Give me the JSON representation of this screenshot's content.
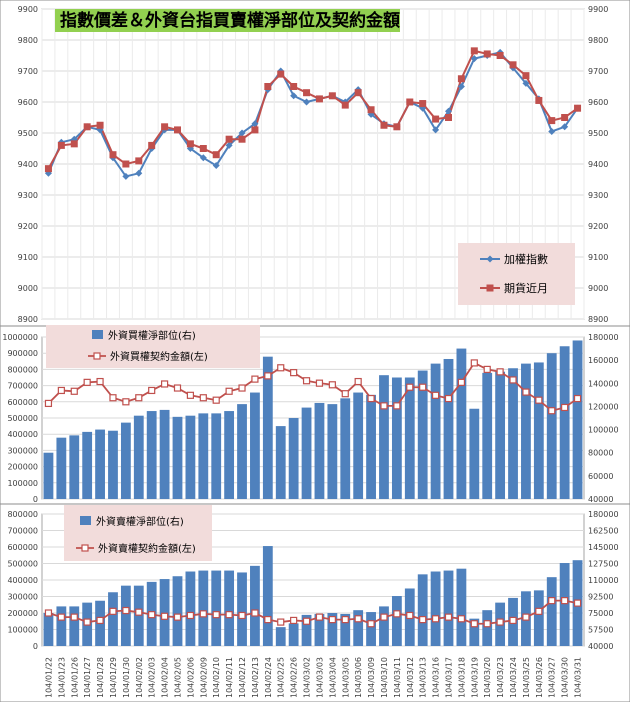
{
  "chart_data": [
    {
      "type": "line",
      "title": "指數價差＆外資台指買賣權淨部位及契約金額",
      "x": [
        "104/01/22",
        "104/01/23",
        "104/01/26",
        "104/01/27",
        "104/01/28",
        "104/01/29",
        "104/01/30",
        "104/02/02",
        "104/02/03",
        "104/02/04",
        "104/02/05",
        "104/02/06",
        "104/02/09",
        "104/02/10",
        "104/02/11",
        "104/02/12",
        "104/02/13",
        "104/02/24",
        "104/02/25",
        "104/02/26",
        "104/03/02",
        "104/03/03",
        "104/03/04",
        "104/03/05",
        "104/03/06",
        "104/03/09",
        "104/03/10",
        "104/03/11",
        "104/03/12",
        "104/03/13",
        "104/03/16",
        "104/03/17",
        "104/03/18",
        "104/03/19",
        "104/03/20",
        "104/03/23",
        "104/03/24",
        "104/03/25",
        "104/03/26",
        "104/03/27",
        "104/03/30",
        "104/03/31"
      ],
      "series": [
        {
          "name": "加權指數",
          "color": "#4f81bd",
          "marker": "diamond",
          "values": [
            9370,
            9470,
            9480,
            9520,
            9510,
            9420,
            9360,
            9370,
            9450,
            9510,
            9510,
            9450,
            9420,
            9395,
            9460,
            9500,
            9530,
            9640,
            9700,
            9620,
            9600,
            9610,
            9620,
            9600,
            9640,
            9560,
            9530,
            9520,
            9600,
            9580,
            9510,
            9570,
            9650,
            9740,
            9750,
            9760,
            9710,
            9660,
            9610,
            9505,
            9520,
            9580
          ]
        },
        {
          "name": "期貨近月",
          "color": "#c0504d",
          "marker": "square",
          "values": [
            9385,
            9460,
            9465,
            9520,
            9525,
            9430,
            9400,
            9410,
            9460,
            9520,
            9510,
            9465,
            9450,
            9430,
            9480,
            9480,
            9510,
            9650,
            9690,
            9650,
            9630,
            9610,
            9620,
            9590,
            9630,
            9575,
            9525,
            9520,
            9600,
            9595,
            9545,
            9550,
            9675,
            9765,
            9755,
            9750,
            9720,
            9685,
            9605,
            9540,
            9550,
            9580
          ]
        }
      ],
      "y_ticks": [
        "8900",
        "9000",
        "9100",
        "9200",
        "9300",
        "9400",
        "9500",
        "9600",
        "9700",
        "9800",
        "9900"
      ],
      "ylim": [
        8900,
        9900
      ],
      "legend_position": "right"
    },
    {
      "type": "bar",
      "x": [
        "104/01/22",
        "104/01/23",
        "104/01/26",
        "104/01/27",
        "104/01/28",
        "104/01/29",
        "104/01/30",
        "104/02/02",
        "104/02/03",
        "104/02/04",
        "104/02/05",
        "104/02/06",
        "104/02/09",
        "104/02/10",
        "104/02/11",
        "104/02/12",
        "104/02/13",
        "104/02/24",
        "104/02/25",
        "104/02/26",
        "104/03/02",
        "104/03/03",
        "104/03/04",
        "104/03/05",
        "104/03/06",
        "104/03/09",
        "104/03/10",
        "104/03/11",
        "104/03/12",
        "104/03/13",
        "104/03/16",
        "104/03/17",
        "104/03/18",
        "104/03/19",
        "104/03/20",
        "104/03/23",
        "104/03/24",
        "104/03/25",
        "104/03/26",
        "104/03/27",
        "104/03/30",
        "104/03/31"
      ],
      "series": [
        {
          "name": "外資買權淨部位(右)",
          "axis": "right",
          "type": "bar",
          "color": "#4f81bd",
          "values": [
            80000,
            93000,
            95000,
            98000,
            100000,
            99000,
            106000,
            112000,
            116000,
            117000,
            111000,
            112000,
            114000,
            114000,
            116000,
            122000,
            132000,
            163000,
            103000,
            110000,
            119000,
            123000,
            122000,
            127000,
            132000,
            130000,
            147000,
            145000,
            145000,
            151000,
            157000,
            161000,
            170000,
            118000,
            149000,
            150000,
            153000,
            157000,
            158000,
            166000,
            172000,
            177000
          ]
        },
        {
          "name": "外資買權契約金額(左)",
          "axis": "left",
          "type": "line",
          "color": "#c0504d",
          "values": [
            590000,
            670000,
            665000,
            720000,
            725000,
            625000,
            600000,
            625000,
            670000,
            710000,
            685000,
            640000,
            625000,
            610000,
            665000,
            685000,
            740000,
            760000,
            810000,
            780000,
            730000,
            715000,
            705000,
            650000,
            725000,
            620000,
            575000,
            575000,
            690000,
            690000,
            640000,
            620000,
            720000,
            840000,
            800000,
            785000,
            735000,
            660000,
            610000,
            545000,
            565000,
            620000
          ]
        }
      ],
      "y_ticks_left": [
        "0",
        "100000",
        "200000",
        "300000",
        "400000",
        "500000",
        "600000",
        "700000",
        "800000",
        "900000",
        "1000000"
      ],
      "y_ticks_right": [
        "40000",
        "60000",
        "80000",
        "100000",
        "120000",
        "140000",
        "160000",
        "180000"
      ],
      "ylim_left": [
        0,
        1000000
      ],
      "ylim_right": [
        40000,
        180000
      ],
      "legend_position": "top-left"
    },
    {
      "type": "bar",
      "x": [
        "104/01/22",
        "104/01/23",
        "104/01/26",
        "104/01/27",
        "104/01/28",
        "104/01/29",
        "104/01/30",
        "104/02/02",
        "104/02/03",
        "104/02/04",
        "104/02/05",
        "104/02/06",
        "104/02/09",
        "104/02/10",
        "104/02/11",
        "104/02/12",
        "104/02/13",
        "104/02/24",
        "104/02/25",
        "104/02/26",
        "104/03/02",
        "104/03/03",
        "104/03/04",
        "104/03/05",
        "104/03/06",
        "104/03/09",
        "104/03/10",
        "104/03/11",
        "104/03/12",
        "104/03/13",
        "104/03/16",
        "104/03/17",
        "104/03/18",
        "104/03/19",
        "104/03/20",
        "104/03/23",
        "104/03/24",
        "104/03/25",
        "104/03/26",
        "104/03/27",
        "104/03/30",
        "104/03/31"
      ],
      "series": [
        {
          "name": "外資賣權淨部位(右)",
          "axis": "right",
          "type": "bar",
          "color": "#4f81bd",
          "values": [
            75000,
            82000,
            82000,
            86000,
            88000,
            97000,
            104000,
            104000,
            108000,
            111000,
            114000,
            119000,
            120000,
            120000,
            120000,
            118000,
            125000,
            146000,
            60000,
            64000,
            73000,
            74000,
            75000,
            74000,
            78000,
            76000,
            82000,
            93000,
            101000,
            116000,
            119000,
            120000,
            122000,
            69000,
            78000,
            86000,
            91000,
            98000,
            99000,
            113000,
            128000,
            131000
          ]
        },
        {
          "name": "外資賣權契約金額(左)",
          "axis": "left",
          "type": "line",
          "color": "#c0504d",
          "values": [
            200000,
            175000,
            175000,
            145000,
            155000,
            210000,
            215000,
            205000,
            190000,
            180000,
            175000,
            185000,
            195000,
            190000,
            190000,
            185000,
            200000,
            160000,
            145000,
            155000,
            150000,
            175000,
            160000,
            160000,
            165000,
            135000,
            175000,
            195000,
            185000,
            160000,
            165000,
            175000,
            165000,
            135000,
            135000,
            145000,
            155000,
            175000,
            210000,
            275000,
            275000,
            260000
          ]
        }
      ],
      "y_ticks_left": [
        "0",
        "100000",
        "200000",
        "300000",
        "400000",
        "500000",
        "600000",
        "700000",
        "800000"
      ],
      "y_ticks_right": [
        "40000",
        "57500",
        "75000",
        "92500",
        "110000",
        "127500",
        "145000",
        "162500",
        "180000"
      ],
      "ylim_left": [
        0,
        800000
      ],
      "ylim_right": [
        40000,
        180000
      ],
      "legend_position": "top-left"
    }
  ]
}
